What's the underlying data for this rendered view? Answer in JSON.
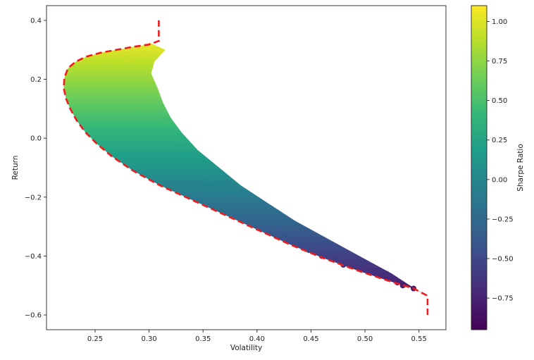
{
  "chart_data": {
    "type": "scatter",
    "title": "",
    "xlabel": "Volatility",
    "ylabel": "Return",
    "xlim": [
      0.205,
      0.575
    ],
    "ylim": [
      -0.65,
      0.45
    ],
    "xticks": [
      0.25,
      0.3,
      0.35,
      0.4,
      0.45,
      0.5,
      0.55
    ],
    "xtick_labels": [
      "0.25",
      "0.30",
      "0.35",
      "0.40",
      "0.45",
      "0.50",
      "0.55"
    ],
    "yticks": [
      -0.6,
      -0.4,
      -0.2,
      0.0,
      0.2,
      0.4
    ],
    "ytick_labels": [
      "−0.6",
      "−0.4",
      "−0.2",
      "0.0",
      "0.2",
      "0.4"
    ],
    "grid": false,
    "colormap": "viridis",
    "colorbar": {
      "label": "Sharpe Ratio",
      "range": [
        -0.95,
        1.1
      ],
      "ticks": [
        -0.75,
        -0.5,
        -0.25,
        0.0,
        0.25,
        0.5,
        0.75,
        1.0
      ],
      "tick_labels": [
        "−0.75",
        "−0.50",
        "−0.25",
        "0.00",
        "0.25",
        "0.50",
        "0.75",
        "1.00"
      ]
    },
    "scatter_points": [
      [
        0.3,
        0.31
      ],
      [
        0.305,
        0.3
      ],
      [
        0.295,
        0.29
      ],
      [
        0.28,
        0.27
      ],
      [
        0.262,
        0.24
      ],
      [
        0.3,
        0.26
      ],
      [
        0.293,
        0.22
      ],
      [
        0.3,
        0.2
      ],
      [
        0.286,
        0.18
      ],
      [
        0.305,
        0.17
      ],
      [
        0.3,
        0.13
      ],
      [
        0.29,
        0.11
      ],
      [
        0.31,
        0.09
      ],
      [
        0.315,
        0.06
      ],
      [
        0.322,
        0.02
      ],
      [
        0.33,
        -0.01
      ],
      [
        0.338,
        -0.06
      ],
      [
        0.345,
        -0.1
      ],
      [
        0.355,
        -0.14
      ],
      [
        0.365,
        -0.18
      ],
      [
        0.372,
        -0.2
      ],
      [
        0.385,
        -0.24
      ],
      [
        0.392,
        -0.26
      ],
      [
        0.405,
        -0.29
      ],
      [
        0.412,
        -0.3
      ],
      [
        0.425,
        -0.33
      ],
      [
        0.438,
        -0.36
      ],
      [
        0.448,
        -0.38
      ],
      [
        0.46,
        -0.4
      ],
      [
        0.472,
        -0.41
      ],
      [
        0.48,
        -0.43
      ],
      [
        0.495,
        -0.42
      ],
      [
        0.5,
        -0.44
      ],
      [
        0.505,
        -0.455
      ],
      [
        0.52,
        -0.46
      ],
      [
        0.53,
        -0.49
      ],
      [
        0.535,
        -0.5
      ],
      [
        0.545,
        -0.51
      ]
    ],
    "frontier_line": {
      "style": "dashed",
      "color": "#ee1c1c",
      "points": [
        [
          0.309,
          0.4
        ],
        [
          0.309,
          0.33
        ],
        [
          0.3,
          0.318
        ],
        [
          0.285,
          0.31
        ],
        [
          0.27,
          0.3
        ],
        [
          0.255,
          0.29
        ],
        [
          0.242,
          0.277
        ],
        [
          0.232,
          0.26
        ],
        [
          0.225,
          0.238
        ],
        [
          0.2215,
          0.205
        ],
        [
          0.221,
          0.17
        ],
        [
          0.223,
          0.135
        ],
        [
          0.227,
          0.1
        ],
        [
          0.233,
          0.06
        ],
        [
          0.241,
          0.02
        ],
        [
          0.252,
          -0.02
        ],
        [
          0.265,
          -0.06
        ],
        [
          0.285,
          -0.11
        ],
        [
          0.31,
          -0.16
        ],
        [
          0.34,
          -0.21
        ],
        [
          0.37,
          -0.26
        ],
        [
          0.4,
          -0.31
        ],
        [
          0.43,
          -0.36
        ],
        [
          0.46,
          -0.405
        ],
        [
          0.49,
          -0.445
        ],
        [
          0.52,
          -0.482
        ],
        [
          0.545,
          -0.51
        ],
        [
          0.558,
          -0.535
        ],
        [
          0.558,
          -0.6
        ]
      ]
    }
  }
}
